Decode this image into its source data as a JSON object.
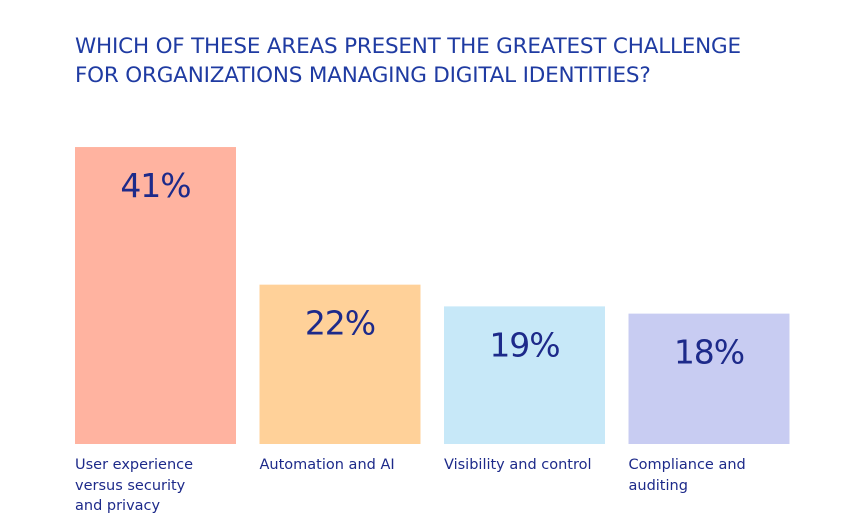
{
  "title": {
    "line1": "WHICH OF THESE AREAS PRESENT THE GREATEST CHALLENGE",
    "line2": "FOR ORGANIZATIONS MANAGING DIGITAL IDENTITIES?"
  },
  "chart_data": {
    "type": "bar",
    "title": "WHICH OF THESE AREAS PRESENT THE GREATEST CHALLENGE FOR ORGANIZATIONS MANAGING DIGITAL IDENTITIES?",
    "categories": [
      "User experience versus security and privacy",
      "Automation and AI",
      "Visibility and control",
      "Compliance and auditing"
    ],
    "category_lines": [
      [
        "User experience",
        "versus security",
        "and privacy"
      ],
      [
        "Automation and AI"
      ],
      [
        "Visibility and control"
      ],
      [
        "Compliance and",
        "auditing"
      ]
    ],
    "values": [
      41,
      22,
      19,
      18
    ],
    "value_labels": [
      "41%",
      "22%",
      "19%",
      "18%"
    ],
    "colors": [
      "#ffb3a0",
      "#ffd199",
      "#c7e8f8",
      "#c8ccf2"
    ],
    "label_color": "#1d2a8a",
    "title_color": "#1f3ba2",
    "grid": false,
    "legend": "none"
  }
}
